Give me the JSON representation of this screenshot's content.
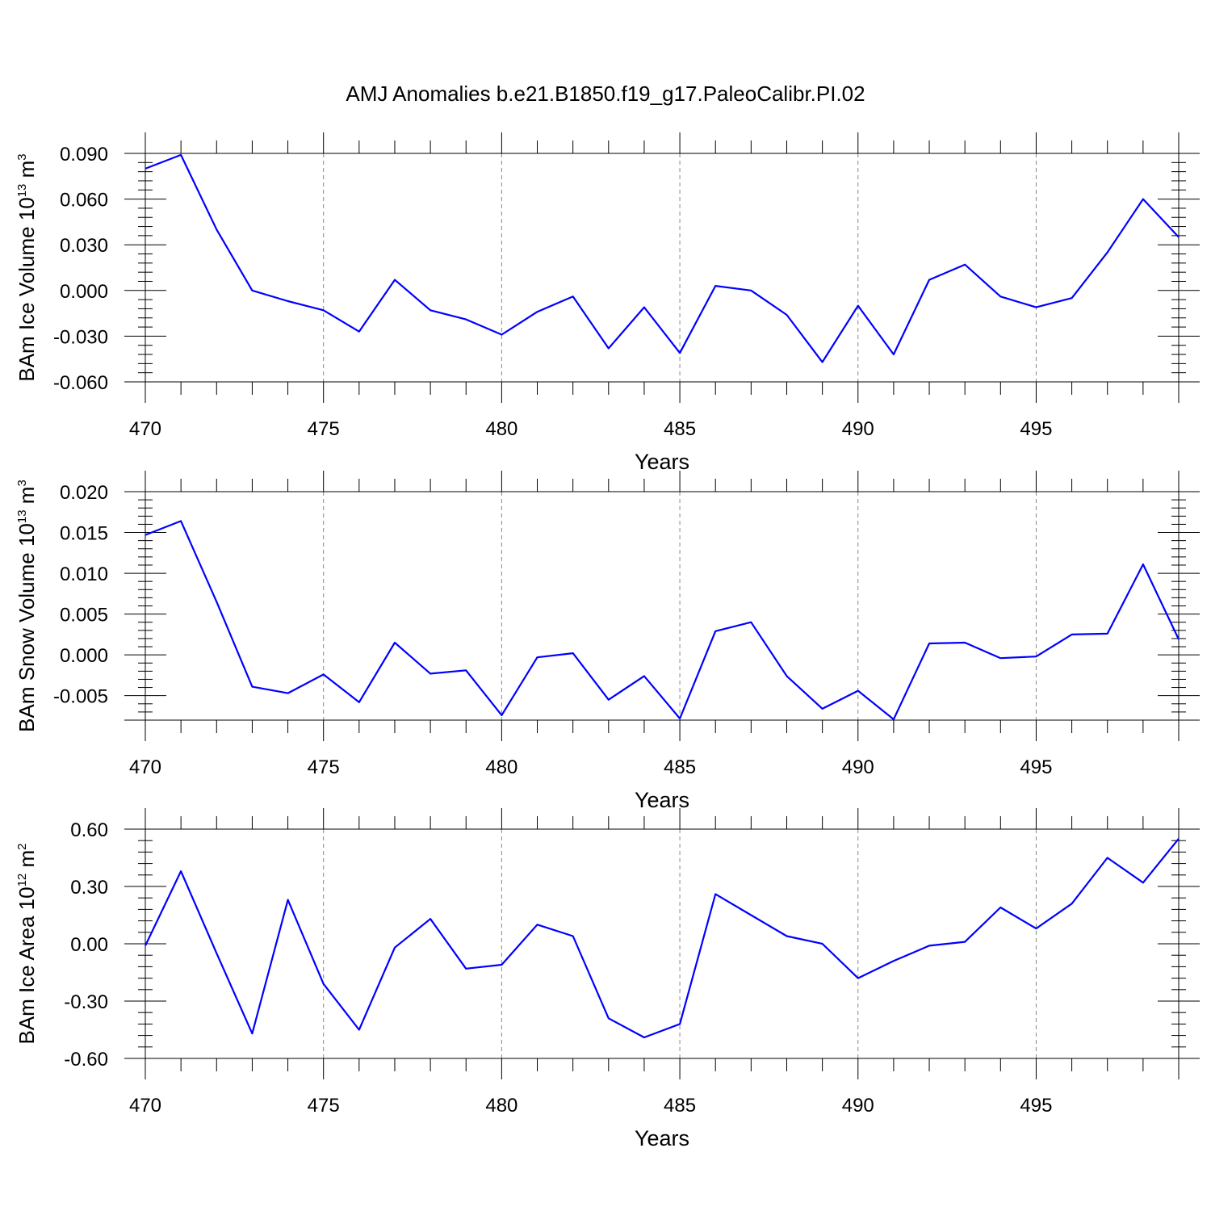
{
  "chart_data": {
    "title": "AMJ Anomalies b.e21.B1850.f19_g17.PaleoCalibr.PI.02",
    "line_color": "#0000ff",
    "panels": [
      {
        "type": "line",
        "xlabel": "Years",
        "ylabel": {
          "prefix": "BAm Ice Volume 10",
          "sup1": "13",
          "mid": " m",
          "sup2": "3"
        },
        "xlim": [
          470,
          499
        ],
        "ylim": [
          -0.06,
          0.09
        ],
        "xticks": [
          470,
          475,
          480,
          485,
          490,
          495
        ],
        "xtick_labels": [
          "470",
          "475",
          "480",
          "485",
          "490",
          "495"
        ],
        "yticks": [
          0.09,
          0.06,
          0.03,
          0.0,
          -0.03,
          -0.06
        ],
        "ytick_labels": [
          "0.090",
          "0.060",
          "0.030",
          "0.000",
          "-0.030",
          "-0.060"
        ],
        "series": [
          {
            "name": "BAm Ice Volume",
            "x": [
              470,
              471,
              472,
              473,
              474,
              475,
              476,
              477,
              478,
              479,
              480,
              481,
              482,
              483,
              484,
              485,
              486,
              487,
              488,
              489,
              490,
              491,
              492,
              493,
              494,
              495,
              496,
              497,
              498,
              499
            ],
            "y": [
              0.08,
              0.089,
              0.04,
              0.0,
              -0.007,
              -0.013,
              -0.027,
              0.007,
              -0.013,
              -0.019,
              -0.029,
              -0.014,
              -0.004,
              -0.038,
              -0.011,
              -0.041,
              0.003,
              0.0,
              -0.016,
              -0.047,
              -0.01,
              -0.042,
              0.007,
              0.017,
              -0.004,
              -0.011,
              -0.005,
              0.025,
              0.06,
              0.035
            ]
          }
        ]
      },
      {
        "type": "line",
        "xlabel": "Years",
        "ylabel": {
          "prefix": "BAm Snow Volume 10",
          "sup1": "13",
          "mid": " m",
          "sup2": "3"
        },
        "xlim": [
          470,
          499
        ],
        "ylim": [
          -0.008,
          0.02
        ],
        "xticks": [
          470,
          475,
          480,
          485,
          490,
          495
        ],
        "xtick_labels": [
          "470",
          "475",
          "480",
          "485",
          "490",
          "495"
        ],
        "yticks": [
          0.02,
          0.015,
          0.01,
          0.005,
          0.0,
          -0.005
        ],
        "ytick_labels": [
          "0.020",
          "0.015",
          "0.010",
          "0.005",
          "0.000",
          "-0.005"
        ],
        "series": [
          {
            "name": "BAm Snow Volume",
            "x": [
              470,
              471,
              472,
              473,
              474,
              475,
              476,
              477,
              478,
              479,
              480,
              481,
              482,
              483,
              484,
              485,
              486,
              487,
              488,
              489,
              490,
              491,
              492,
              493,
              494,
              495,
              496,
              497,
              498,
              499
            ],
            "y": [
              0.0147,
              0.0164,
              0.0065,
              -0.0039,
              -0.0047,
              -0.0024,
              -0.0058,
              0.0015,
              -0.0023,
              -0.0019,
              -0.0074,
              -0.0003,
              0.0002,
              -0.0055,
              -0.0026,
              -0.0078,
              0.0029,
              0.004,
              -0.0026,
              -0.0066,
              -0.0044,
              -0.0079,
              0.0014,
              0.0015,
              -0.0004,
              -0.0002,
              0.0025,
              0.0026,
              0.0111,
              0.0019
            ]
          }
        ]
      },
      {
        "type": "line",
        "xlabel": "Years",
        "ylabel": {
          "prefix": "BAm Ice Area 10",
          "sup1": "12",
          "mid": " m",
          "sup2": "2"
        },
        "xlim": [
          470,
          499
        ],
        "ylim": [
          -0.6,
          0.6
        ],
        "xticks": [
          470,
          475,
          480,
          485,
          490,
          495
        ],
        "xtick_labels": [
          "470",
          "475",
          "480",
          "485",
          "490",
          "495"
        ],
        "yticks": [
          0.6,
          0.3,
          0.0,
          -0.3,
          -0.6
        ],
        "ytick_labels": [
          "0.60",
          "0.30",
          "0.00",
          "-0.30",
          "-0.60"
        ],
        "series": [
          {
            "name": "BAm Ice Area",
            "x": [
              470,
              471,
              472,
              473,
              474,
              475,
              476,
              477,
              478,
              479,
              480,
              481,
              482,
              483,
              484,
              485,
              486,
              487,
              488,
              489,
              490,
              491,
              492,
              493,
              494,
              495,
              496,
              497,
              498,
              499
            ],
            "y": [
              -0.01,
              0.38,
              -0.05,
              -0.47,
              0.23,
              -0.21,
              -0.45,
              -0.02,
              0.13,
              -0.13,
              -0.11,
              0.1,
              0.04,
              -0.39,
              -0.49,
              -0.42,
              0.26,
              0.15,
              0.04,
              0.0,
              -0.18,
              -0.09,
              -0.01,
              0.01,
              0.19,
              0.08,
              0.21,
              0.45,
              0.32,
              0.55
            ]
          }
        ]
      }
    ]
  }
}
